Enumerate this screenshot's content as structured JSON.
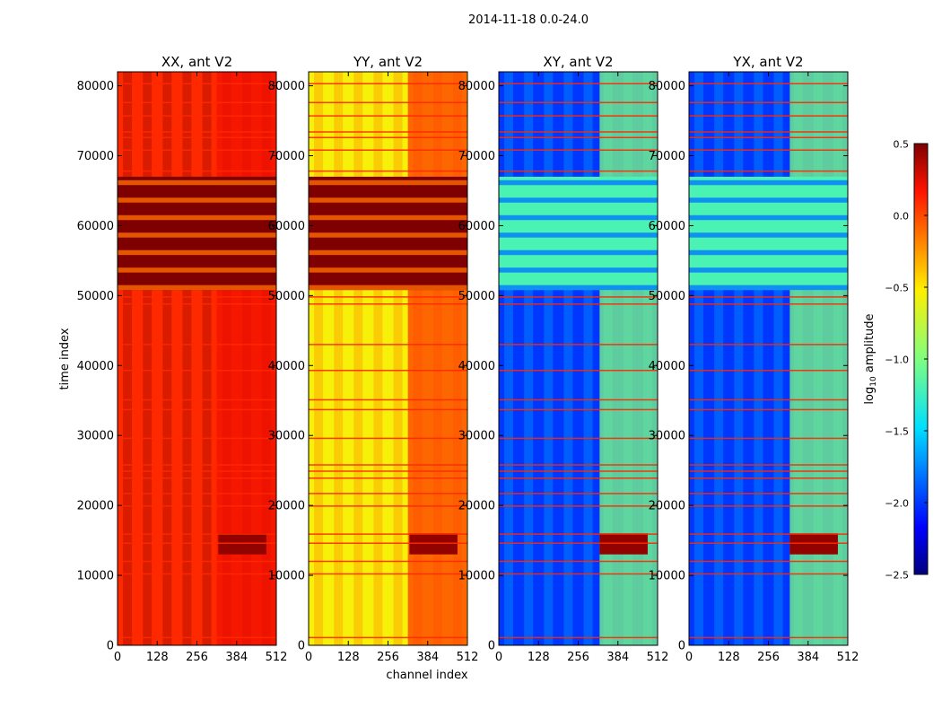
{
  "figure": {
    "suptitle": "2014-11-18 0.0-24.0",
    "xlabel": "channel index",
    "ylabel": "time index"
  },
  "chart_data": {
    "type": "heatmap",
    "colormap": "jet",
    "x_range": [
      0,
      512
    ],
    "y_range": [
      0,
      82000
    ],
    "x_ticks": [
      0,
      128,
      256,
      384,
      512
    ],
    "y_ticks": [
      0,
      10000,
      20000,
      30000,
      40000,
      50000,
      60000,
      70000,
      80000
    ],
    "band_range": [
      50800,
      67000
    ],
    "hot_range": [
      13000,
      16000
    ],
    "hot_channels": [
      325,
      480
    ],
    "flag_lines": [
      1100,
      10200,
      12000,
      14600,
      15900,
      19900,
      21700,
      23900,
      24900,
      25800,
      29600,
      33700,
      35100,
      39300,
      43000,
      48800,
      49800,
      67800,
      70800,
      72600,
      73400,
      75700,
      77600,
      80300
    ],
    "panels": [
      {
        "title": "XX, ant V2",
        "base_value": 0.1,
        "band_value": 0.5,
        "rfi_channels": [
          320,
          510
        ],
        "rfi_value": 0.2
      },
      {
        "title": "YY, ant V2",
        "base_value": -0.55,
        "band_value": 0.5,
        "rfi_channels": [
          320,
          510
        ],
        "rfi_value": 0.05
      },
      {
        "title": "XY, ant V2",
        "base_value": -2.0,
        "band_value": -1.2,
        "rfi_channels": [
          325,
          512
        ],
        "rfi_value": -1.0
      },
      {
        "title": "YX, ant V2",
        "base_value": -2.0,
        "band_value": -1.2,
        "rfi_channels": [
          325,
          512
        ],
        "rfi_value": -1.0
      }
    ],
    "colorbar": {
      "label": "log10 amplitude",
      "range": [
        -2.5,
        0.5
      ],
      "ticks": [
        "0.5",
        "0.0",
        "−0.5",
        "−1.0",
        "−1.5",
        "−2.0",
        "−2.5"
      ]
    }
  }
}
